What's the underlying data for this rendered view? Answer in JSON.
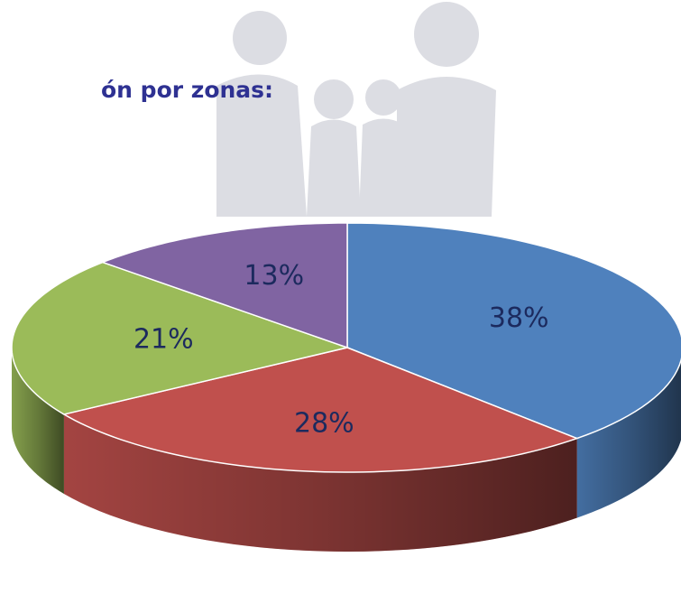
{
  "chart_data": {
    "type": "pie",
    "title": "ón por zonas:",
    "values": [
      38,
      28,
      21,
      13
    ],
    "value_labels": [
      "38%",
      "28%",
      "21%",
      "13%"
    ],
    "colors": [
      "#4f81bd",
      "#c0504d",
      "#9bbb59",
      "#8064a2"
    ]
  }
}
